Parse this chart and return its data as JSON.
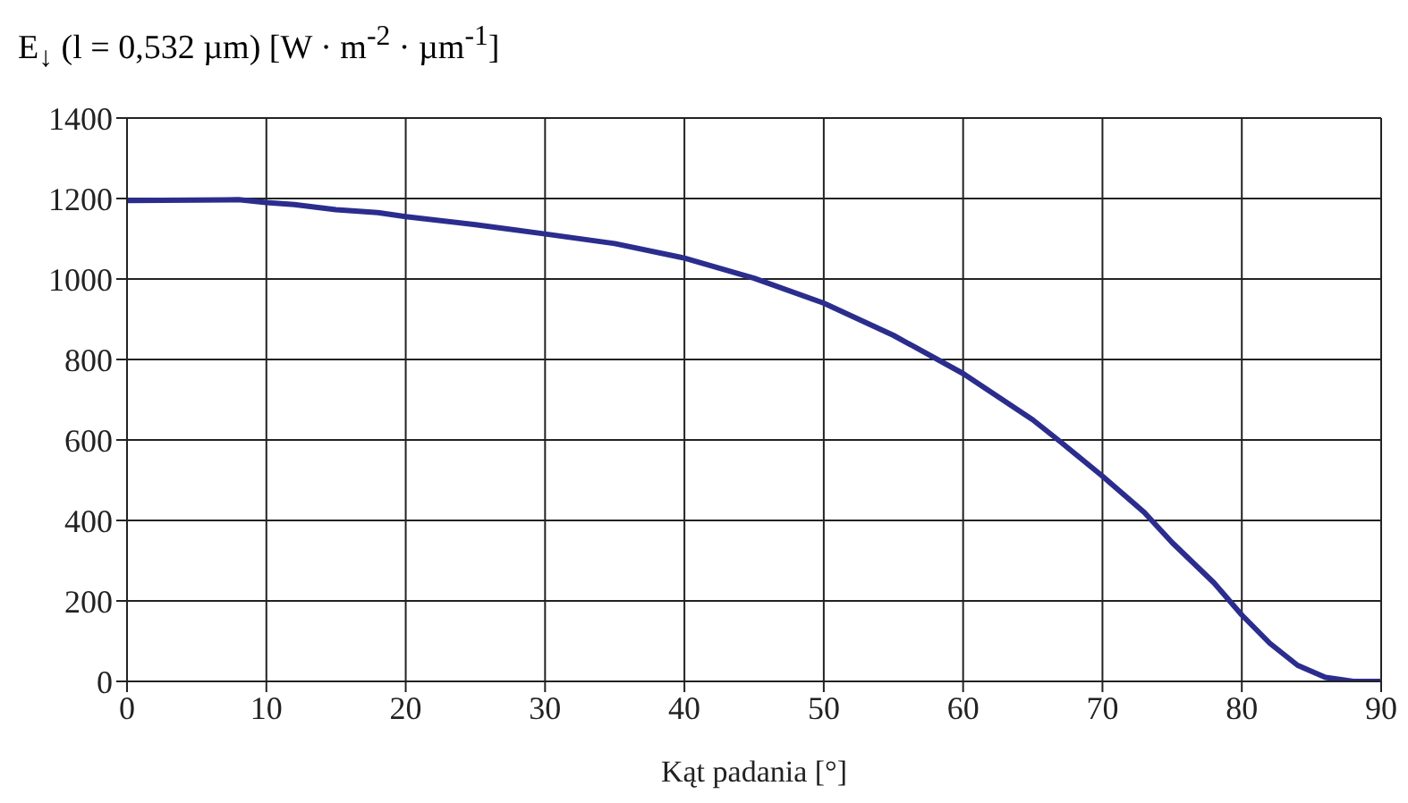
{
  "chart_data": {
    "type": "line",
    "title": "E$_{↓}$ (l = 0,532 µm) [W · m$^{-2}$ · µm$^{-1}$]",
    "xlabel": "Kąt padania [°]",
    "x": [
      0,
      8,
      10,
      12,
      15,
      18,
      20,
      25,
      30,
      35,
      40,
      45,
      50,
      55,
      60,
      65,
      67,
      70,
      73,
      75,
      78,
      80,
      82,
      84,
      86,
      88,
      90
    ],
    "series": [
      {
        "color": "#2b2d8e",
        "values": [
          1195,
          1197,
          1190,
          1185,
          1172,
          1165,
          1155,
          1135,
          1112,
          1088,
          1052,
          1002,
          940,
          860,
          765,
          650,
          595,
          510,
          420,
          345,
          245,
          165,
          95,
          40,
          10,
          0,
          0
        ]
      }
    ],
    "xlim": [
      0,
      90
    ],
    "xticks": [
      0,
      10,
      20,
      30,
      40,
      50,
      60,
      70,
      80,
      90
    ],
    "ylim": [
      0,
      1400
    ],
    "yticks": [
      0,
      200,
      400,
      600,
      800,
      1000,
      1200,
      1400
    ],
    "grid": true,
    "legend": false,
    "marker": "none",
    "line_style": "solid"
  }
}
